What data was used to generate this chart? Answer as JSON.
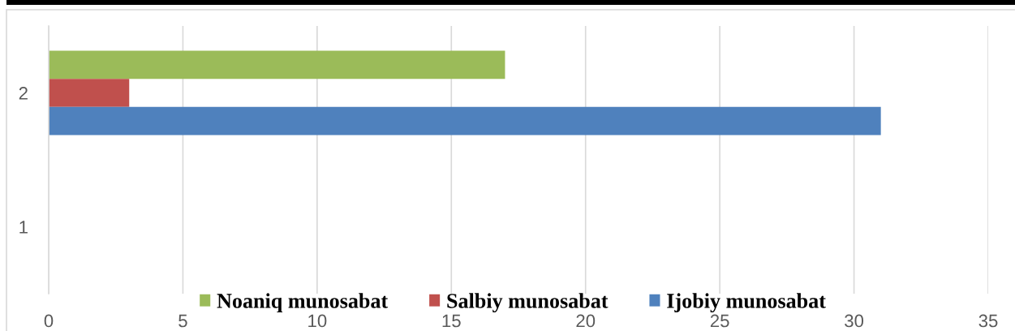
{
  "chart_data": {
    "type": "bar",
    "orientation": "horizontal",
    "categories": [
      "2",
      "1"
    ],
    "series": [
      {
        "name": "Noaniq munosabat",
        "color": "#9bbb59",
        "values": [
          17,
          null
        ]
      },
      {
        "name": "Salbiy munosabat",
        "color": "#c0504d",
        "values": [
          3,
          null
        ]
      },
      {
        "name": "Ijobiy munosabat",
        "color": "#4f81bd",
        "values": [
          31,
          null
        ]
      }
    ],
    "xlim": [
      0,
      35
    ],
    "xticks": [
      0,
      5,
      10,
      15,
      20,
      25,
      30,
      35
    ],
    "grid": "x",
    "legend": "bottom"
  }
}
